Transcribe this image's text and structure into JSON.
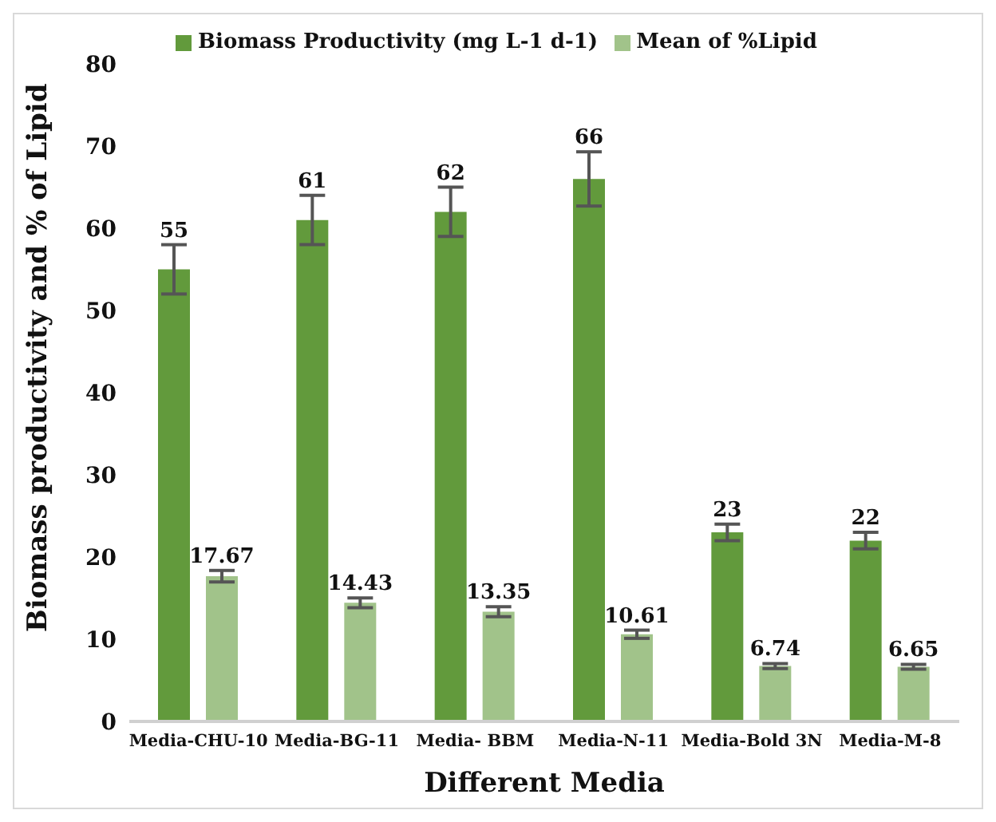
{
  "chart_data": {
    "type": "bar",
    "xlabel": "Different Media",
    "ylabel": "Biomass productivity and % of Lipid",
    "categories": [
      "Media-CHU-10",
      "Media-BG-11",
      "Media- BBM",
      "Media-N-11",
      "Media-Bold 3N",
      "Media-M-8"
    ],
    "series": [
      {
        "name": "Biomass Productivity  (mg L-1 d-1)",
        "color": "#629a3c",
        "values": [
          55,
          61,
          62,
          66,
          23,
          22
        ],
        "errors": [
          3,
          3,
          3,
          3.3,
          1,
          1
        ]
      },
      {
        "name": "Mean of %Lipid",
        "color": "#a1c38a",
        "values": [
          17.67,
          14.43,
          13.35,
          10.61,
          6.74,
          6.65
        ],
        "errors": [
          0.7,
          0.6,
          0.6,
          0.5,
          0.3,
          0.3
        ]
      }
    ],
    "ylim": [
      0,
      80
    ],
    "yticks": [
      0,
      10,
      20,
      30,
      40,
      50,
      60,
      70,
      80
    ],
    "legend": "top",
    "data_labels": true
  }
}
